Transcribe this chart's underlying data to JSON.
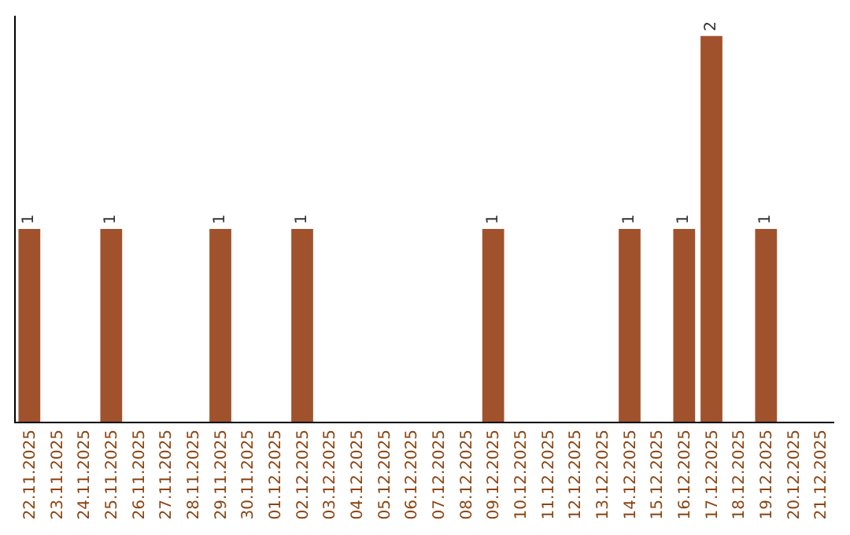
{
  "chart_data": {
    "type": "bar",
    "categories": [
      "22.11.2025",
      "23.11.2025",
      "24.11.2025",
      "25.11.2025",
      "26.11.2025",
      "27.11.2025",
      "28.11.2025",
      "29.11.2025",
      "30.11.2025",
      "01.12.2025",
      "02.12.2025",
      "03.12.2025",
      "04.12.2025",
      "05.12.2025",
      "06.12.2025",
      "07.12.2025",
      "08.12.2025",
      "09.12.2025",
      "10.12.2025",
      "11.12.2025",
      "12.12.2025",
      "13.12.2025",
      "14.12.2025",
      "15.12.2025",
      "16.12.2025",
      "17.12.2025",
      "18.12.2025",
      "19.12.2025",
      "20.12.2025",
      "21.12.2025"
    ],
    "values": [
      1,
      0,
      0,
      1,
      0,
      0,
      0,
      1,
      0,
      0,
      1,
      0,
      0,
      0,
      0,
      0,
      0,
      1,
      0,
      0,
      0,
      0,
      1,
      0,
      1,
      2,
      0,
      1,
      0,
      0
    ],
    "value_labels": [
      "1",
      null,
      null,
      "1",
      null,
      null,
      null,
      "1",
      null,
      null,
      "1",
      null,
      null,
      null,
      null,
      null,
      null,
      "1",
      null,
      null,
      null,
      null,
      "1",
      null,
      "1",
      "2",
      null,
      "1",
      null,
      null
    ],
    "color": "#a0522d",
    "tick_labels": "x"
  }
}
